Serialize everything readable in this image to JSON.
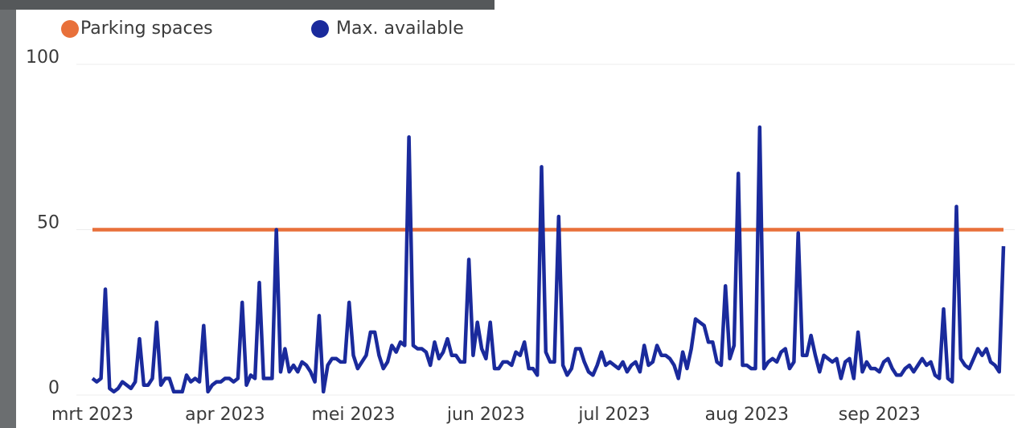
{
  "chart_data": {
    "type": "line",
    "categories": [
      "mrt 2023",
      null,
      null,
      null,
      null,
      null,
      null,
      null,
      null,
      null,
      null,
      null,
      null,
      null,
      null,
      null,
      null,
      null,
      null,
      null,
      null,
      null,
      null,
      null,
      null,
      null,
      null,
      null,
      null,
      null,
      null,
      "apr 2023",
      null,
      null,
      null,
      null,
      null,
      null,
      null,
      null,
      null,
      null,
      null,
      null,
      null,
      null,
      null,
      null,
      null,
      null,
      null,
      null,
      null,
      null,
      null,
      null,
      null,
      null,
      null,
      null,
      null,
      "mei 2023",
      null,
      null,
      null,
      null,
      null,
      null,
      null,
      null,
      null,
      null,
      null,
      null,
      null,
      null,
      null,
      null,
      null,
      null,
      null,
      null,
      null,
      null,
      null,
      null,
      null,
      null,
      null,
      null,
      null,
      null,
      "jun 2023",
      null,
      null,
      null,
      null,
      null,
      null,
      null,
      null,
      null,
      null,
      null,
      null,
      null,
      null,
      null,
      null,
      null,
      null,
      null,
      null,
      null,
      null,
      null,
      null,
      null,
      null,
      null,
      null,
      null,
      "jul 2023",
      null,
      null,
      null,
      null,
      null,
      null,
      null,
      null,
      null,
      null,
      null,
      null,
      null,
      null,
      null,
      null,
      null,
      null,
      null,
      null,
      null,
      null,
      null,
      null,
      null,
      null,
      null,
      null,
      null,
      null,
      "aug 2023",
      null,
      null,
      null,
      null,
      null,
      null,
      null,
      null,
      null,
      null,
      null,
      null,
      null,
      null,
      null,
      null,
      null,
      null,
      null,
      null,
      null,
      null,
      null,
      null,
      null,
      null,
      null,
      null,
      null,
      null,
      "sep 2023",
      null,
      null,
      null,
      null,
      null,
      null,
      null,
      null,
      null,
      null,
      null,
      null,
      null,
      null,
      null,
      null,
      null,
      null,
      null,
      null,
      null,
      null,
      null,
      null,
      null,
      null,
      null,
      null,
      null
    ],
    "series": [
      {
        "name": "Parking spaces",
        "color": "#e8703a",
        "values": [
          50,
          50,
          50,
          50,
          50,
          50,
          50,
          50,
          50,
          50,
          50,
          50,
          50,
          50,
          50,
          50,
          50,
          50,
          50,
          50,
          50,
          50,
          50,
          50,
          50,
          50,
          50,
          50,
          50,
          50,
          50,
          50,
          50,
          50,
          50,
          50,
          50,
          50,
          50,
          50,
          50,
          50,
          50,
          50,
          50,
          50,
          50,
          50,
          50,
          50,
          50,
          50,
          50,
          50,
          50,
          50,
          50,
          50,
          50,
          50,
          50,
          50,
          50,
          50,
          50,
          50,
          50,
          50,
          50,
          50,
          50,
          50,
          50,
          50,
          50,
          50,
          50,
          50,
          50,
          50,
          50,
          50,
          50,
          50,
          50,
          50,
          50,
          50,
          50,
          50,
          50,
          50,
          50,
          50,
          50,
          50,
          50,
          50,
          50,
          50,
          50,
          50,
          50,
          50,
          50,
          50,
          50,
          50,
          50,
          50,
          50,
          50,
          50,
          50,
          50,
          50,
          50,
          50,
          50,
          50,
          50,
          50,
          50,
          50,
          50,
          50,
          50,
          50,
          50,
          50,
          50,
          50,
          50,
          50,
          50,
          50,
          50,
          50,
          50,
          50,
          50,
          50,
          50,
          50,
          50,
          50,
          50,
          50,
          50,
          50,
          50,
          50,
          50,
          50,
          50,
          50,
          50,
          50,
          50,
          50,
          50,
          50,
          50,
          50,
          50,
          50,
          50,
          50,
          50,
          50,
          50,
          50,
          50,
          50,
          50,
          50,
          50,
          50,
          50,
          50,
          50,
          50,
          50,
          50,
          50,
          50,
          50,
          50,
          50,
          50,
          50,
          50,
          50,
          50,
          50,
          50,
          50,
          50,
          50,
          50,
          50,
          50,
          50,
          50,
          50,
          50,
          50,
          50,
          50,
          50,
          50,
          50,
          50,
          50
        ]
      },
      {
        "name": "Max. available",
        "color": "#1a2a9c",
        "values": [
          5,
          4,
          5,
          32,
          2,
          1,
          2,
          4,
          3,
          2,
          4,
          17,
          3,
          3,
          5,
          22,
          3,
          5,
          5,
          1,
          1,
          1,
          6,
          4,
          5,
          4,
          21,
          1,
          3,
          4,
          4,
          5,
          5,
          4,
          5,
          28,
          3,
          6,
          5,
          34,
          5,
          5,
          5,
          50,
          7,
          14,
          7,
          9,
          7,
          10,
          9,
          7,
          4,
          24,
          1,
          9,
          11,
          11,
          10,
          10,
          28,
          12,
          8,
          10,
          12,
          19,
          19,
          12,
          8,
          10,
          15,
          13,
          16,
          15,
          78,
          15,
          14,
          14,
          13,
          9,
          16,
          11,
          13,
          17,
          12,
          12,
          10,
          10,
          41,
          12,
          22,
          14,
          11,
          22,
          8,
          8,
          10,
          10,
          9,
          13,
          12,
          16,
          8,
          8,
          6,
          69,
          13,
          10,
          10,
          54,
          9,
          6,
          8,
          14,
          14,
          10,
          7,
          6,
          9,
          13,
          9,
          10,
          9,
          8,
          10,
          7,
          9,
          10,
          7,
          15,
          9,
          10,
          15,
          12,
          12,
          11,
          9,
          5,
          13,
          8,
          14,
          23,
          22,
          21,
          16,
          16,
          10,
          9,
          33,
          11,
          15,
          67,
          9,
          9,
          8,
          8,
          81,
          8,
          10,
          11,
          10,
          13,
          14,
          8,
          10,
          49,
          12,
          12,
          18,
          12,
          7,
          12,
          11,
          10,
          11,
          5,
          10,
          11,
          5,
          19,
          7,
          10,
          8,
          8,
          7,
          10,
          11,
          8,
          6,
          6,
          8,
          9,
          7,
          9,
          11,
          9,
          10,
          6,
          5,
          26,
          5,
          4,
          57,
          11,
          9,
          8,
          11,
          14,
          12,
          14,
          10,
          9,
          7,
          45
        ]
      }
    ],
    "ylim": [
      0,
      100
    ],
    "yticks": [
      0,
      50,
      100
    ],
    "grid": true
  }
}
